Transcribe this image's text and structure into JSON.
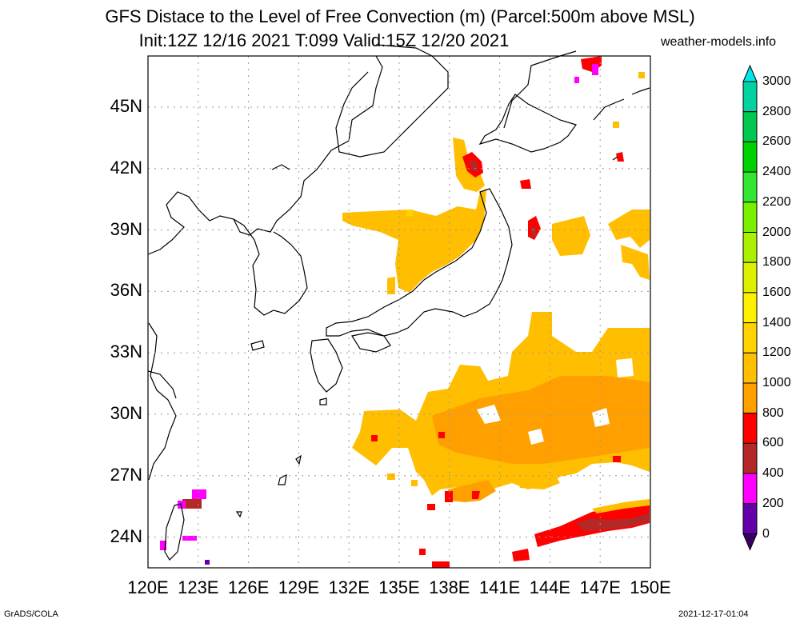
{
  "header": {
    "title_line1": "GFS Distace to the Level of Free Convection (m) (Parcel:500m above MSL)",
    "title_line2": "Init:12Z 12/16 2021 T:099 Valid:15Z 12/20 2021",
    "site": "weather-models.info"
  },
  "footer": {
    "left": "GrADS/COLA",
    "right": "2021-12-17-01:04"
  },
  "map": {
    "lat_labels": [
      "45N",
      "42N",
      "39N",
      "36N",
      "33N",
      "30N",
      "27N",
      "24N"
    ],
    "lon_labels": [
      "120E",
      "123E",
      "126E",
      "129E",
      "132E",
      "135E",
      "138E",
      "141E",
      "144E",
      "147E",
      "150E"
    ],
    "lat_range": [
      22.5,
      47.5
    ],
    "lon_range": [
      120,
      150
    ],
    "grid": true
  },
  "colorbar": {
    "labels": [
      "3000",
      "2800",
      "2600",
      "2400",
      "2200",
      "2000",
      "1800",
      "1600",
      "1400",
      "1200",
      "1000",
      "800",
      "600",
      "400",
      "200",
      "0"
    ],
    "colors": [
      "#00e6e6",
      "#00d2a0",
      "#00c850",
      "#00d200",
      "#32e632",
      "#78f000",
      "#aaf000",
      "#dcf000",
      "#fff000",
      "#ffd200",
      "#ffbe00",
      "#ffa000",
      "#ff0000",
      "#b42828",
      "#ff00ff",
      "#6400aa",
      "#3c0064"
    ]
  }
}
